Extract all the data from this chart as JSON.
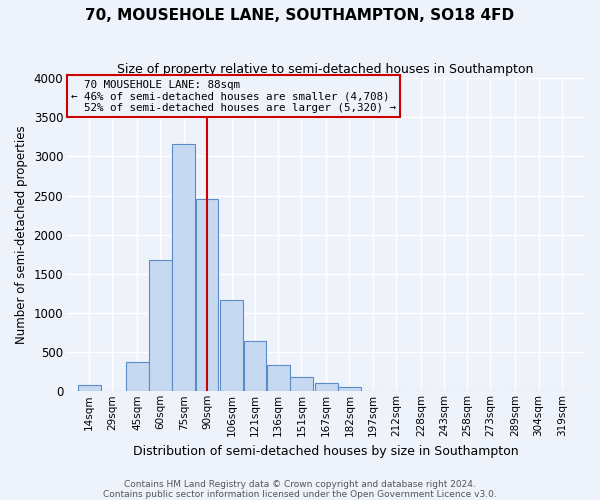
{
  "title": "70, MOUSEHOLE LANE, SOUTHAMPTON, SO18 4FD",
  "subtitle": "Size of property relative to semi-detached houses in Southampton",
  "xlabel": "Distribution of semi-detached houses by size in Southampton",
  "ylabel": "Number of semi-detached properties",
  "footnote1": "Contains HM Land Registry data © Crown copyright and database right 2024.",
  "footnote2": "Contains public sector information licensed under the Open Government Licence v3.0.",
  "bin_labels": [
    "14sqm",
    "29sqm",
    "45sqm",
    "60sqm",
    "75sqm",
    "90sqm",
    "106sqm",
    "121sqm",
    "136sqm",
    "151sqm",
    "167sqm",
    "182sqm",
    "197sqm",
    "212sqm",
    "228sqm",
    "243sqm",
    "258sqm",
    "273sqm",
    "289sqm",
    "304sqm",
    "319sqm"
  ],
  "bar_heights": [
    75,
    0,
    370,
    1680,
    3160,
    2450,
    1160,
    640,
    340,
    185,
    110,
    55,
    0,
    0,
    0,
    0,
    0,
    0,
    0,
    0,
    0
  ],
  "bar_color": "#c6d9f0",
  "bar_edge_color": "#5b8cc8",
  "property_label": "70 MOUSEHOLE LANE: 88sqm",
  "pct_smaller": 46,
  "n_smaller": 4708,
  "pct_larger": 52,
  "n_larger": 5320,
  "vline_color": "#cc0000",
  "ylim": [
    0,
    4000
  ],
  "yticks": [
    0,
    500,
    1000,
    1500,
    2000,
    2500,
    3000,
    3500,
    4000
  ],
  "annotation_box_edge_color": "#cc0000",
  "background_color": "#eef2fa",
  "grid_color": "#ffffff",
  "bin_centers": [
    14,
    29,
    45,
    60,
    75,
    90,
    106,
    121,
    136,
    151,
    167,
    182,
    197,
    212,
    228,
    243,
    258,
    273,
    289,
    304,
    319
  ],
  "vline_x": 90,
  "bin_width": 15
}
